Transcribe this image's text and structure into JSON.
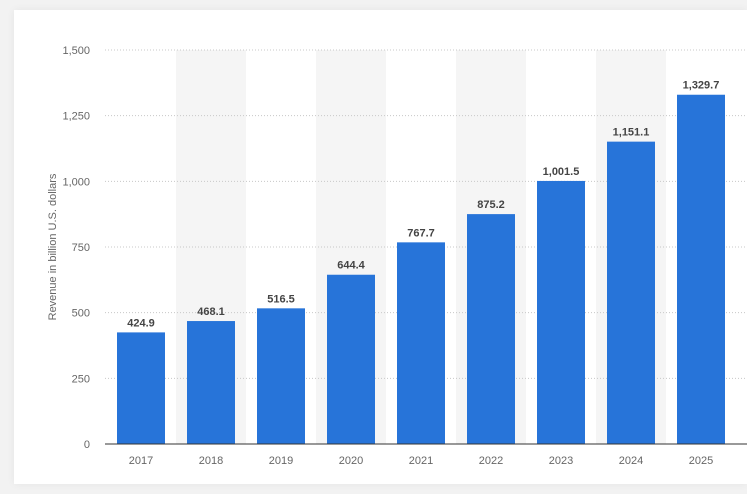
{
  "chart_data": {
    "type": "bar",
    "ylabel": "Revenue in billion U.S. dollars",
    "xlabel": "",
    "categories": [
      "2017",
      "2018",
      "2019",
      "2020",
      "2021",
      "2022",
      "2023",
      "2024",
      "2025"
    ],
    "values": [
      424.9,
      468.1,
      516.5,
      644.4,
      767.7,
      875.2,
      1001.5,
      1151.1,
      1329.7
    ],
    "value_labels": [
      "424.9",
      "468.1",
      "516.5",
      "644.4",
      "767.7",
      "875.2",
      "1,001.5",
      "1,151.1",
      "1,329.7"
    ],
    "ylim": [
      0,
      1500
    ],
    "yticks": [
      0,
      250,
      500,
      750,
      1000,
      1250,
      1500
    ],
    "ytick_labels": [
      "0",
      "250",
      "500",
      "750",
      "1,000",
      "1,250",
      "1,500"
    ],
    "grid": true,
    "colors": {
      "bar": "#2774d9",
      "band": "#f5f5f5",
      "grid": "#c8c8c8",
      "axis": "#333333"
    }
  }
}
